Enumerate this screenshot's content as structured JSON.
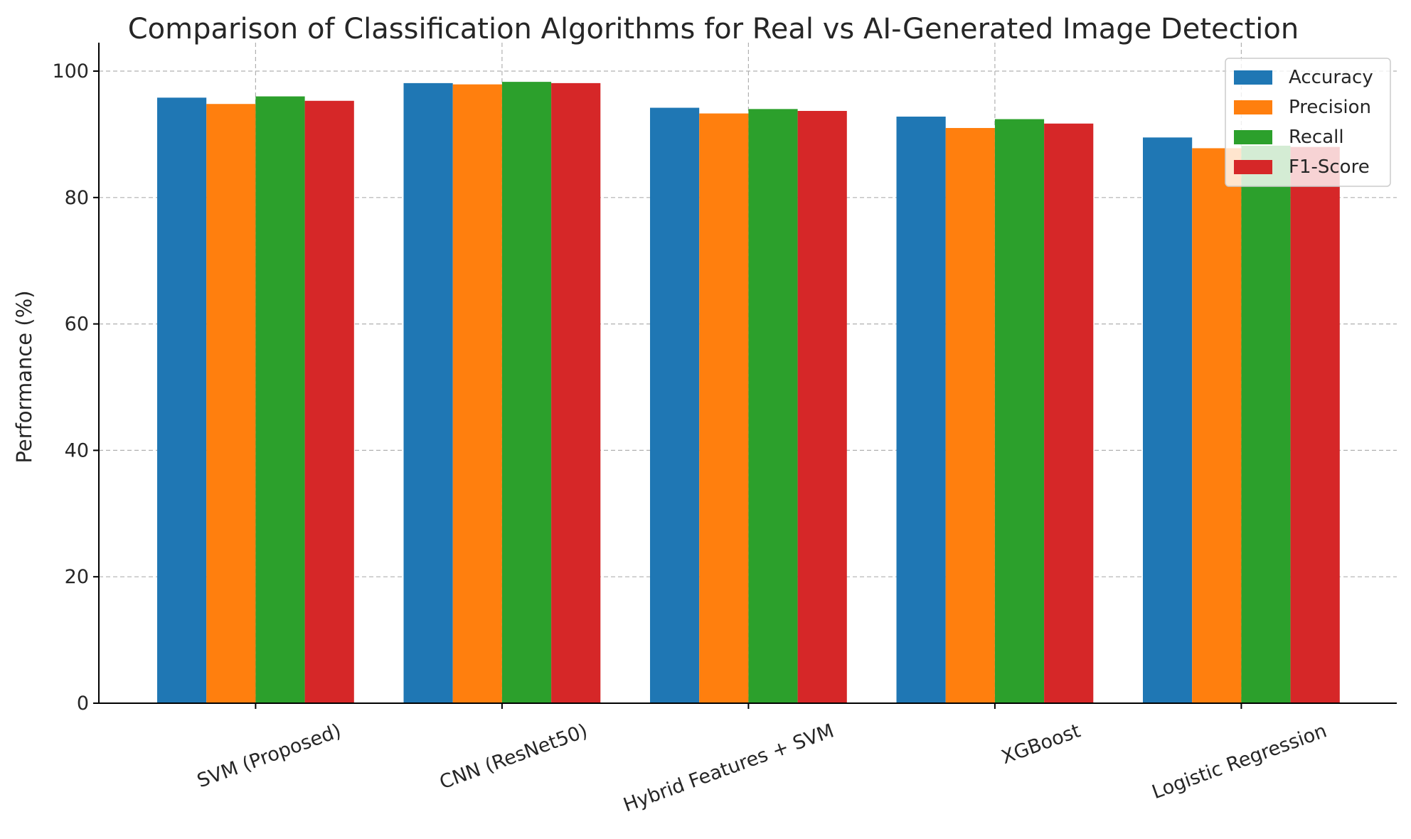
{
  "chart_data": {
    "type": "bar",
    "title": "Comparison of Classification Algorithms for Real vs AI-Generated Image Detection",
    "xlabel": "",
    "ylabel": "Performance (%)",
    "categories": [
      "SVM (Proposed)",
      "CNN (ResNet50)",
      "Hybrid Features + SVM",
      "XGBoost",
      "Logistic Regression"
    ],
    "series": [
      {
        "name": "Accuracy",
        "color": "#1f77b4",
        "values": [
          95.8,
          98.1,
          94.2,
          92.8,
          89.5
        ]
      },
      {
        "name": "Precision",
        "color": "#ff7f0e",
        "values": [
          94.8,
          97.9,
          93.3,
          91.0,
          87.8
        ]
      },
      {
        "name": "Recall",
        "color": "#2ca02c",
        "values": [
          96.0,
          98.3,
          94.0,
          92.4,
          88.2
        ]
      },
      {
        "name": "F1-Score",
        "color": "#d62728",
        "values": [
          95.3,
          98.1,
          93.7,
          91.7,
          88.0
        ]
      }
    ],
    "ylim": [
      0,
      100
    ],
    "yticks": [
      "0",
      "20",
      "40",
      "60",
      "80",
      "100"
    ],
    "ytick_values": [
      0,
      20,
      40,
      60,
      80,
      100
    ],
    "grid": true,
    "legend": "top-right"
  }
}
